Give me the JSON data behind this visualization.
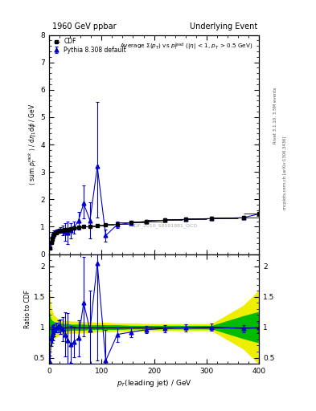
{
  "title_left": "1960 GeV ppbar",
  "title_right": "Underlying Event",
  "plot_label": "CDF_2010_S8591881_QCD",
  "inner_title": "Average Σ(p_T) vs p_T^{lead} (|η| < 1, p_T > 0.5 GeV)",
  "ylabel_main": "⟨ sum p_T^{rack} ⟩ / dη₁dφ / GeV",
  "ylabel_ratio": "Ratio to CDF",
  "xlabel": "p_T(leading jet) / GeV",
  "right_label_top": "Rivet 3.1.10, 3.5M events",
  "right_label_bot": "mcplots.cern.ch [arXiv:1306.3436]",
  "cdf_x": [
    2,
    4,
    6,
    8,
    10,
    14,
    18,
    22,
    26,
    30,
    36,
    42,
    48,
    56,
    66,
    78,
    92,
    108,
    130,
    156,
    186,
    220,
    260,
    310,
    370,
    400
  ],
  "cdf_y": [
    0.22,
    0.42,
    0.55,
    0.65,
    0.72,
    0.79,
    0.84,
    0.87,
    0.88,
    0.9,
    0.91,
    0.93,
    0.95,
    0.97,
    1.0,
    1.02,
    1.05,
    1.07,
    1.11,
    1.16,
    1.2,
    1.25,
    1.28,
    1.3,
    1.35,
    1.48
  ],
  "cdf_xerr_lo": [
    2,
    2,
    2,
    2,
    2,
    4,
    4,
    4,
    4,
    4,
    6,
    6,
    6,
    8,
    10,
    12,
    14,
    16,
    22,
    26,
    30,
    34,
    40,
    50,
    60,
    30
  ],
  "cdf_xerr_hi": [
    2,
    2,
    2,
    2,
    2,
    4,
    4,
    4,
    4,
    4,
    6,
    6,
    6,
    8,
    10,
    12,
    14,
    16,
    22,
    26,
    30,
    34,
    40,
    50,
    30,
    0
  ],
  "py_x": [
    2,
    4,
    6,
    8,
    10,
    14,
    18,
    22,
    26,
    30,
    36,
    42,
    48,
    56,
    66,
    78,
    92,
    108,
    130,
    156,
    186,
    220,
    260,
    310,
    370,
    400
  ],
  "py_y": [
    0.26,
    0.5,
    0.62,
    0.71,
    0.78,
    0.83,
    0.86,
    0.88,
    0.86,
    0.8,
    0.78,
    0.86,
    0.98,
    1.22,
    1.85,
    1.23,
    3.2,
    0.68,
    1.08,
    1.14,
    1.2,
    1.24,
    1.27,
    1.3,
    1.33,
    1.47
  ],
  "py_yerr_lo": [
    0.08,
    0.12,
    0.12,
    0.1,
    0.08,
    0.07,
    0.08,
    0.1,
    0.18,
    0.32,
    0.42,
    0.28,
    0.22,
    0.32,
    0.55,
    0.65,
    1.85,
    0.23,
    0.12,
    0.08,
    0.06,
    0.06,
    0.06,
    0.06,
    0.06,
    0.08
  ],
  "py_yerr_hi": [
    0.08,
    0.12,
    0.12,
    0.1,
    0.08,
    0.07,
    0.08,
    0.1,
    0.18,
    0.32,
    0.42,
    0.28,
    0.22,
    0.32,
    0.65,
    0.65,
    2.35,
    0.23,
    0.12,
    0.08,
    0.06,
    0.06,
    0.06,
    0.06,
    0.06,
    0.08
  ],
  "ratio_x": [
    2,
    4,
    6,
    8,
    10,
    14,
    18,
    22,
    26,
    30,
    36,
    42,
    48,
    56,
    66,
    78,
    92,
    108,
    130,
    156,
    186,
    220,
    260,
    310,
    370,
    400
  ],
  "ratio_y": [
    0.43,
    0.83,
    0.88,
    0.91,
    0.95,
    1.0,
    1.02,
    1.01,
    0.97,
    0.88,
    0.78,
    0.72,
    0.76,
    0.82,
    1.4,
    0.95,
    2.05,
    0.45,
    0.88,
    0.92,
    0.96,
    0.98,
    0.99,
    1.0,
    0.98,
    0.99
  ],
  "ratio_yerr_lo": [
    0.1,
    0.14,
    0.14,
    0.12,
    0.1,
    0.08,
    0.1,
    0.12,
    0.2,
    0.36,
    0.45,
    0.3,
    0.25,
    0.3,
    0.55,
    0.65,
    1.6,
    0.5,
    0.12,
    0.08,
    0.06,
    0.06,
    0.06,
    0.06,
    0.06,
    0.08
  ],
  "ratio_yerr_hi": [
    0.1,
    0.14,
    0.14,
    0.12,
    0.1,
    0.08,
    0.1,
    0.12,
    0.2,
    0.36,
    0.45,
    0.3,
    0.25,
    0.3,
    0.75,
    0.65,
    1.8,
    0.5,
    0.12,
    0.08,
    0.06,
    0.06,
    0.06,
    0.06,
    0.06,
    0.08
  ],
  "band_x": [
    0,
    2,
    4,
    6,
    8,
    10,
    14,
    18,
    22,
    26,
    30,
    36,
    42,
    48,
    56,
    66,
    78,
    92,
    108,
    130,
    156,
    186,
    220,
    260,
    310,
    370,
    400
  ],
  "band_ylo_y": [
    1.6,
    1.4,
    1.3,
    1.25,
    1.2,
    1.18,
    1.15,
    1.13,
    1.12,
    1.11,
    1.1,
    1.1,
    1.09,
    1.09,
    1.09,
    1.08,
    1.08,
    1.07,
    1.07,
    1.06,
    1.06,
    1.05,
    1.05,
    1.05,
    1.05,
    1.35,
    1.6
  ],
  "band_ylo_g": [
    1.25,
    1.15,
    1.12,
    1.1,
    1.09,
    1.08,
    1.07,
    1.06,
    1.06,
    1.05,
    1.05,
    1.05,
    1.04,
    1.04,
    1.04,
    1.04,
    1.03,
    1.03,
    1.03,
    1.03,
    1.02,
    1.02,
    1.02,
    1.02,
    1.02,
    1.18,
    1.25
  ],
  "band_yhi_y": [
    0.4,
    0.6,
    0.7,
    0.75,
    0.8,
    0.82,
    0.85,
    0.87,
    0.88,
    0.89,
    0.9,
    0.9,
    0.91,
    0.91,
    0.91,
    0.92,
    0.92,
    0.93,
    0.93,
    0.94,
    0.94,
    0.95,
    0.95,
    0.95,
    0.95,
    0.65,
    0.4
  ],
  "band_yhi_g": [
    0.75,
    0.85,
    0.88,
    0.9,
    0.91,
    0.92,
    0.93,
    0.94,
    0.94,
    0.95,
    0.95,
    0.95,
    0.96,
    0.96,
    0.96,
    0.96,
    0.97,
    0.97,
    0.97,
    0.97,
    0.98,
    0.98,
    0.98,
    0.98,
    0.98,
    0.82,
    0.75
  ],
  "xlim": [
    0,
    400
  ],
  "ylim_main": [
    0,
    8
  ],
  "ylim_ratio": [
    0.4,
    2.2
  ],
  "cdf_color": "#000000",
  "py_color": "#0000cc",
  "green_color": "#00bb00",
  "yellow_color": "#eeee00",
  "bg_color": "#ffffff"
}
